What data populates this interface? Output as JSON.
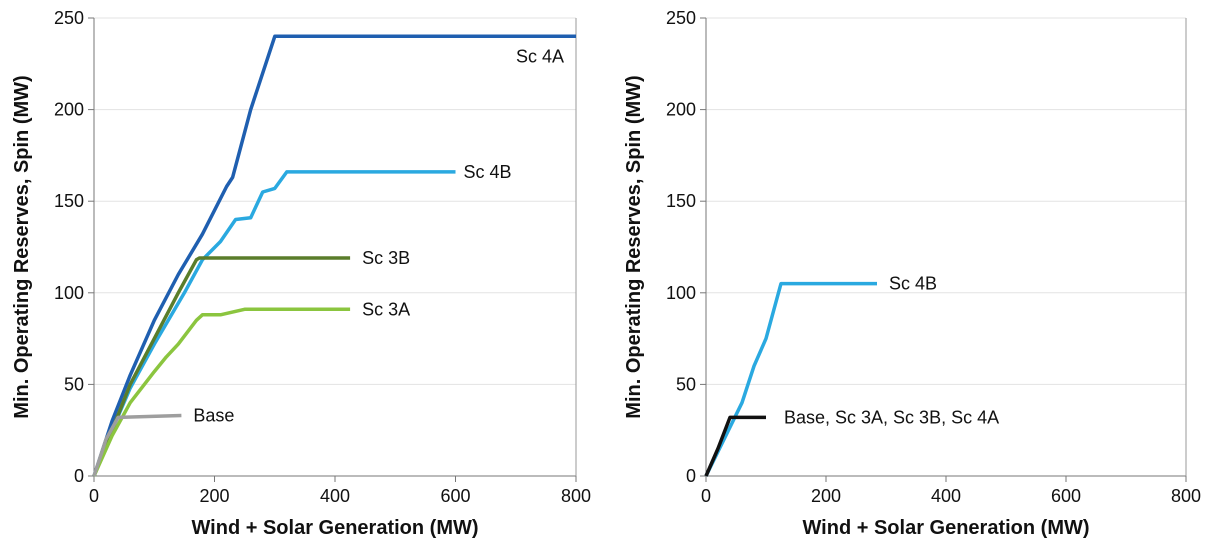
{
  "chart_data": [
    {
      "type": "line",
      "xlabel": "Wind + Solar Generation (MW)",
      "ylabel": "Min. Operating Reserves, Spin (MW)",
      "xlim": [
        0,
        800
      ],
      "ylim": [
        0,
        250
      ],
      "xticks": [
        0,
        200,
        400,
        600,
        800
      ],
      "yticks": [
        0,
        50,
        100,
        150,
        200,
        250
      ],
      "grid": true,
      "series": [
        {
          "name": "Sc 4A",
          "color": "#1f5fb0",
          "points": [
            [
              0,
              0
            ],
            [
              30,
              30
            ],
            [
              60,
              55
            ],
            [
              100,
              85
            ],
            [
              140,
              110
            ],
            [
              180,
              132
            ],
            [
              220,
              158
            ],
            [
              230,
              163
            ],
            [
              260,
              200
            ],
            [
              300,
              240
            ],
            [
              800,
              240
            ]
          ]
        },
        {
          "name": "Sc 4B",
          "color": "#2aa9e0",
          "points": [
            [
              0,
              0
            ],
            [
              30,
              25
            ],
            [
              60,
              48
            ],
            [
              100,
              72
            ],
            [
              150,
              100
            ],
            [
              180,
              118
            ],
            [
              210,
              128
            ],
            [
              235,
              140
            ],
            [
              260,
              141
            ],
            [
              280,
              155
            ],
            [
              300,
              157
            ],
            [
              320,
              166
            ],
            [
              600,
              166
            ]
          ]
        },
        {
          "name": "Sc 3B",
          "color": "#5a7d2a",
          "points": [
            [
              0,
              0
            ],
            [
              30,
              25
            ],
            [
              60,
              50
            ],
            [
              100,
              75
            ],
            [
              140,
              100
            ],
            [
              170,
              118
            ],
            [
              175,
              119
            ],
            [
              425,
              119
            ]
          ]
        },
        {
          "name": "Sc 3A",
          "color": "#8bc53f",
          "points": [
            [
              0,
              0
            ],
            [
              30,
              22
            ],
            [
              60,
              40
            ],
            [
              100,
              57
            ],
            [
              120,
              65
            ],
            [
              140,
              72
            ],
            [
              170,
              85
            ],
            [
              180,
              88
            ],
            [
              210,
              88
            ],
            [
              250,
              91
            ],
            [
              425,
              91
            ]
          ]
        },
        {
          "name": "Base",
          "color": "#9e9e9e",
          "points": [
            [
              0,
              0
            ],
            [
              20,
              20
            ],
            [
              40,
              32
            ],
            [
              145,
              33
            ]
          ]
        }
      ]
    },
    {
      "type": "line",
      "xlabel": "Wind + Solar Generation (MW)",
      "ylabel": "Min. Operating Reserves, Spin (MW)",
      "xlim": [
        0,
        800
      ],
      "ylim": [
        0,
        250
      ],
      "xticks": [
        0,
        200,
        400,
        600,
        800
      ],
      "yticks": [
        0,
        50,
        100,
        150,
        200,
        250
      ],
      "grid": true,
      "series": [
        {
          "name": "Sc 4B",
          "color": "#2aa9e0",
          "points": [
            [
              0,
              0
            ],
            [
              30,
              20
            ],
            [
              60,
              40
            ],
            [
              80,
              60
            ],
            [
              100,
              75
            ],
            [
              125,
              105
            ],
            [
              285,
              105
            ]
          ]
        },
        {
          "name": "Base, Sc 3A, Sc 3B, Sc 4A",
          "color": "#111111",
          "points": [
            [
              0,
              0
            ],
            [
              20,
              15
            ],
            [
              40,
              32
            ],
            [
              100,
              32
            ]
          ]
        }
      ]
    }
  ]
}
